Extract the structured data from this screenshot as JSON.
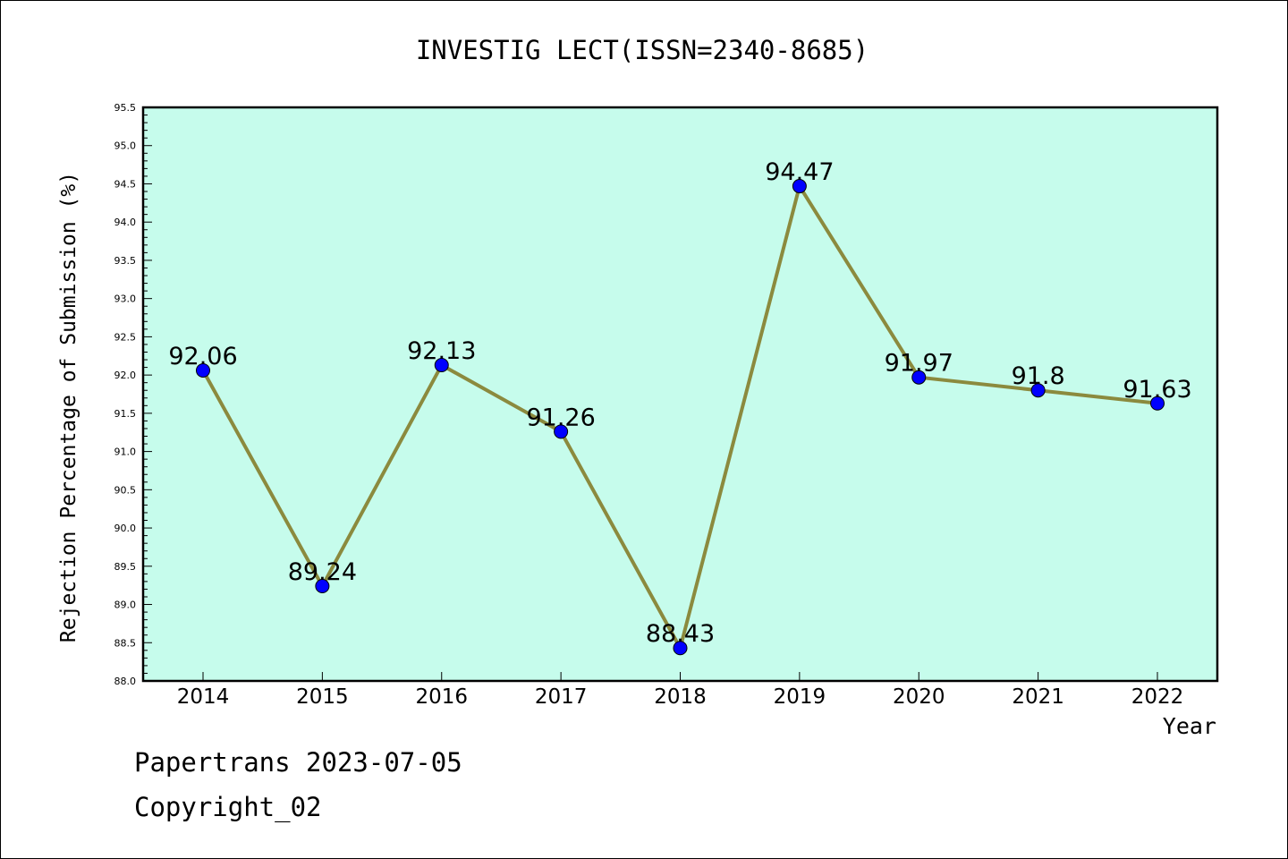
{
  "chart_data": {
    "type": "line",
    "title": "INVESTIG LECT(ISSN=2340-8685)",
    "xlabel": "Year",
    "ylabel": "Rejection Percentage of Submission (%)",
    "categories": [
      "2014",
      "2015",
      "2016",
      "2017",
      "2018",
      "2019",
      "2020",
      "2021",
      "2022"
    ],
    "values": [
      92.06,
      89.24,
      92.13,
      91.26,
      88.43,
      94.47,
      91.97,
      91.8,
      91.63
    ],
    "data_labels": [
      "92.06",
      "89.24",
      "92.13",
      "91.26",
      "88.43",
      "94.47",
      "91.97",
      "91.8",
      "91.63"
    ],
    "ylim": [
      88.0,
      95.5
    ],
    "yticks": [
      "88.0",
      "88.5",
      "89.0",
      "89.5",
      "90.0",
      "90.5",
      "91.0",
      "91.5",
      "92.0",
      "92.5",
      "93.0",
      "93.5",
      "94.0",
      "94.5",
      "95.0",
      "95.5"
    ],
    "grid": false,
    "legend": "none",
    "colors": {
      "plot_background": "#c6fcec",
      "line": "#8b8a3e",
      "marker": "#0000ff"
    }
  },
  "footer": {
    "line1": "Papertrans 2023-07-05",
    "line2": "Copyright_02"
  }
}
